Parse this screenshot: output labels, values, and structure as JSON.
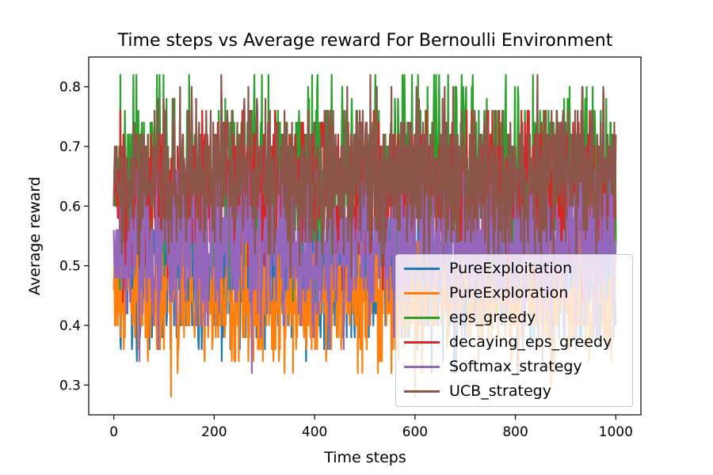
{
  "chart_data": {
    "type": "line",
    "title": "Time steps vs Average reward For Bernoulli Environment",
    "xlabel": "Time steps",
    "ylabel": "Average reward",
    "xlim": [
      -50,
      1050
    ],
    "ylim": [
      0.25,
      0.85
    ],
    "xticks": [
      0,
      200,
      400,
      600,
      800,
      1000
    ],
    "yticks": [
      0.3,
      0.4,
      0.5,
      0.6,
      0.7,
      0.8
    ],
    "x_range": [
      0,
      1000
    ],
    "legend_position": "lower-right",
    "grid": false,
    "series": [
      {
        "name": "PureExploitation",
        "color": "#1f77b4",
        "mean": 0.49,
        "min": 0.32,
        "max": 0.66
      },
      {
        "name": "PureExploration",
        "color": "#ff7f0e",
        "mean": 0.45,
        "min": 0.28,
        "max": 0.56
      },
      {
        "name": "eps_greedy",
        "color": "#2ca02c",
        "mean": 0.65,
        "min": 0.42,
        "max": 0.82
      },
      {
        "name": "decaying_eps_greedy",
        "color": "#d62728",
        "mean": 0.62,
        "min": 0.42,
        "max": 0.76
      },
      {
        "name": "Softmax_strategy",
        "color": "#9467bd",
        "mean": 0.53,
        "min": 0.3,
        "max": 0.66
      },
      {
        "name": "UCB_strategy",
        "color": "#8c564b",
        "mean": 0.65,
        "min": 0.48,
        "max": 0.82
      }
    ]
  }
}
